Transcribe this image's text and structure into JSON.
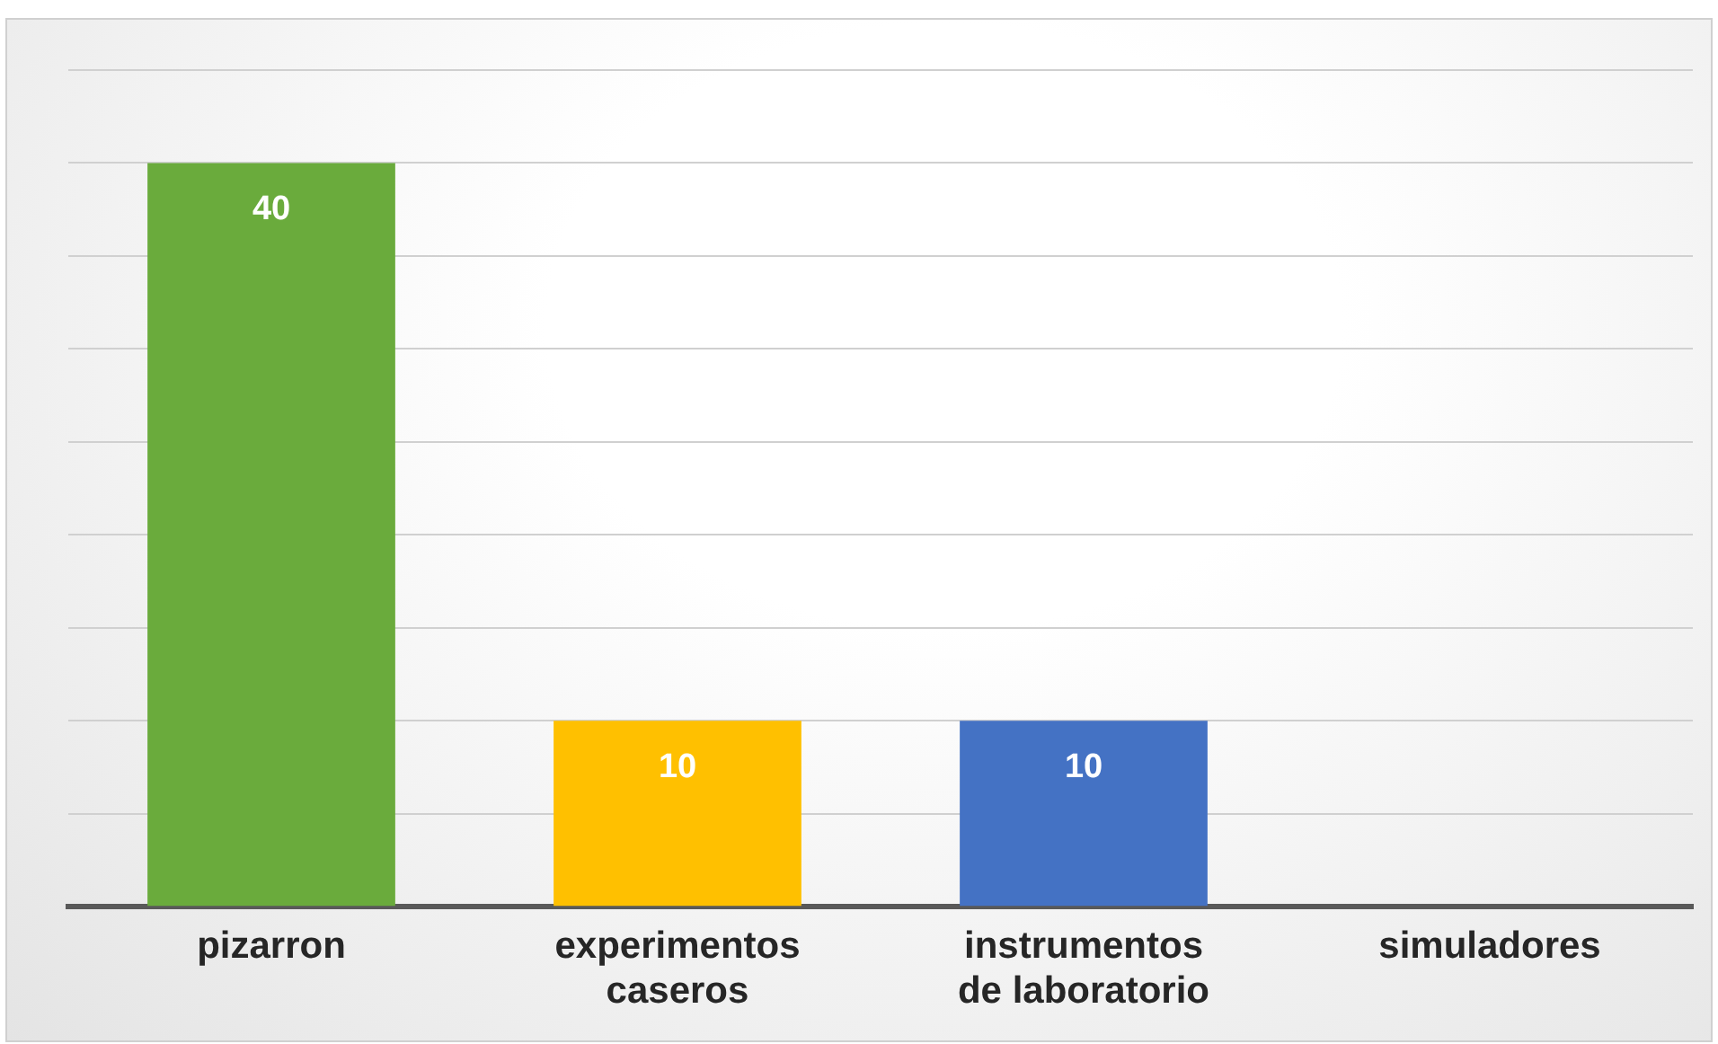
{
  "chart_data": {
    "type": "bar",
    "categories": [
      "pizarron",
      "experimentos caseros",
      "instrumentos de laboratorio",
      "simuladores"
    ],
    "values": [
      40,
      10,
      10,
      0
    ],
    "colors": [
      "#6aab3c",
      "#ffc000",
      "#4472c4",
      "#a5a5a5"
    ],
    "value_labels": [
      "40",
      "10",
      "10",
      null
    ],
    "ylim": [
      0,
      45
    ],
    "yticks": [
      {
        "value": 0,
        "label": null
      },
      {
        "value": 5,
        "label": null
      },
      {
        "value": 10,
        "label": null
      },
      {
        "value": 15,
        "label": null
      },
      {
        "value": 20,
        "label": null
      },
      {
        "value": 25,
        "label": null
      },
      {
        "value": 30,
        "label": null
      },
      {
        "value": 35,
        "label": null
      },
      {
        "value": 40,
        "label": null
      },
      {
        "value": 45,
        "label": null
      }
    ],
    "tick_labels": "x",
    "grid": "y",
    "legend": false
  }
}
